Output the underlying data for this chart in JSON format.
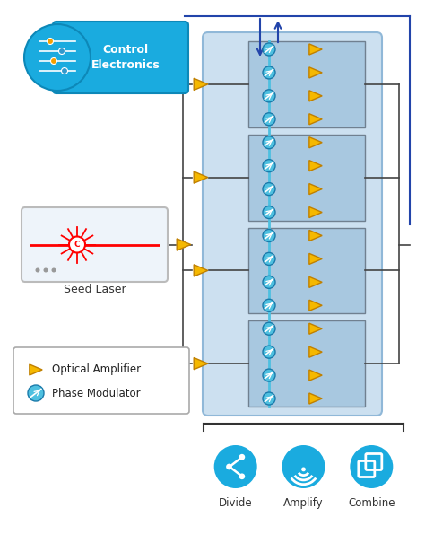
{
  "bg_color": "#ffffff",
  "light_blue_panel": "#cce0f0",
  "blue_panel_border": "#90b8d8",
  "control_box_color": "#1aabdf",
  "seed_box_color": "#eef4fa",
  "seed_box_border": "#bbbbbb",
  "seed_label": "Seed Laser",
  "amplifier_color": "#f5b800",
  "amplifier_border": "#c08000",
  "phase_mod_color": "#4ec0e0",
  "phase_mod_border": "#1a7aaa",
  "channel_box_color": "#a8c8e0",
  "channel_box_border": "#708090",
  "arrow_blue": "#2244aa",
  "line_color": "#444444",
  "bottom_circle_color": "#1aabdf",
  "legend_border": "#aaaaaa",
  "bottom_labels": [
    "Divide",
    "Amplify",
    "Combine"
  ]
}
